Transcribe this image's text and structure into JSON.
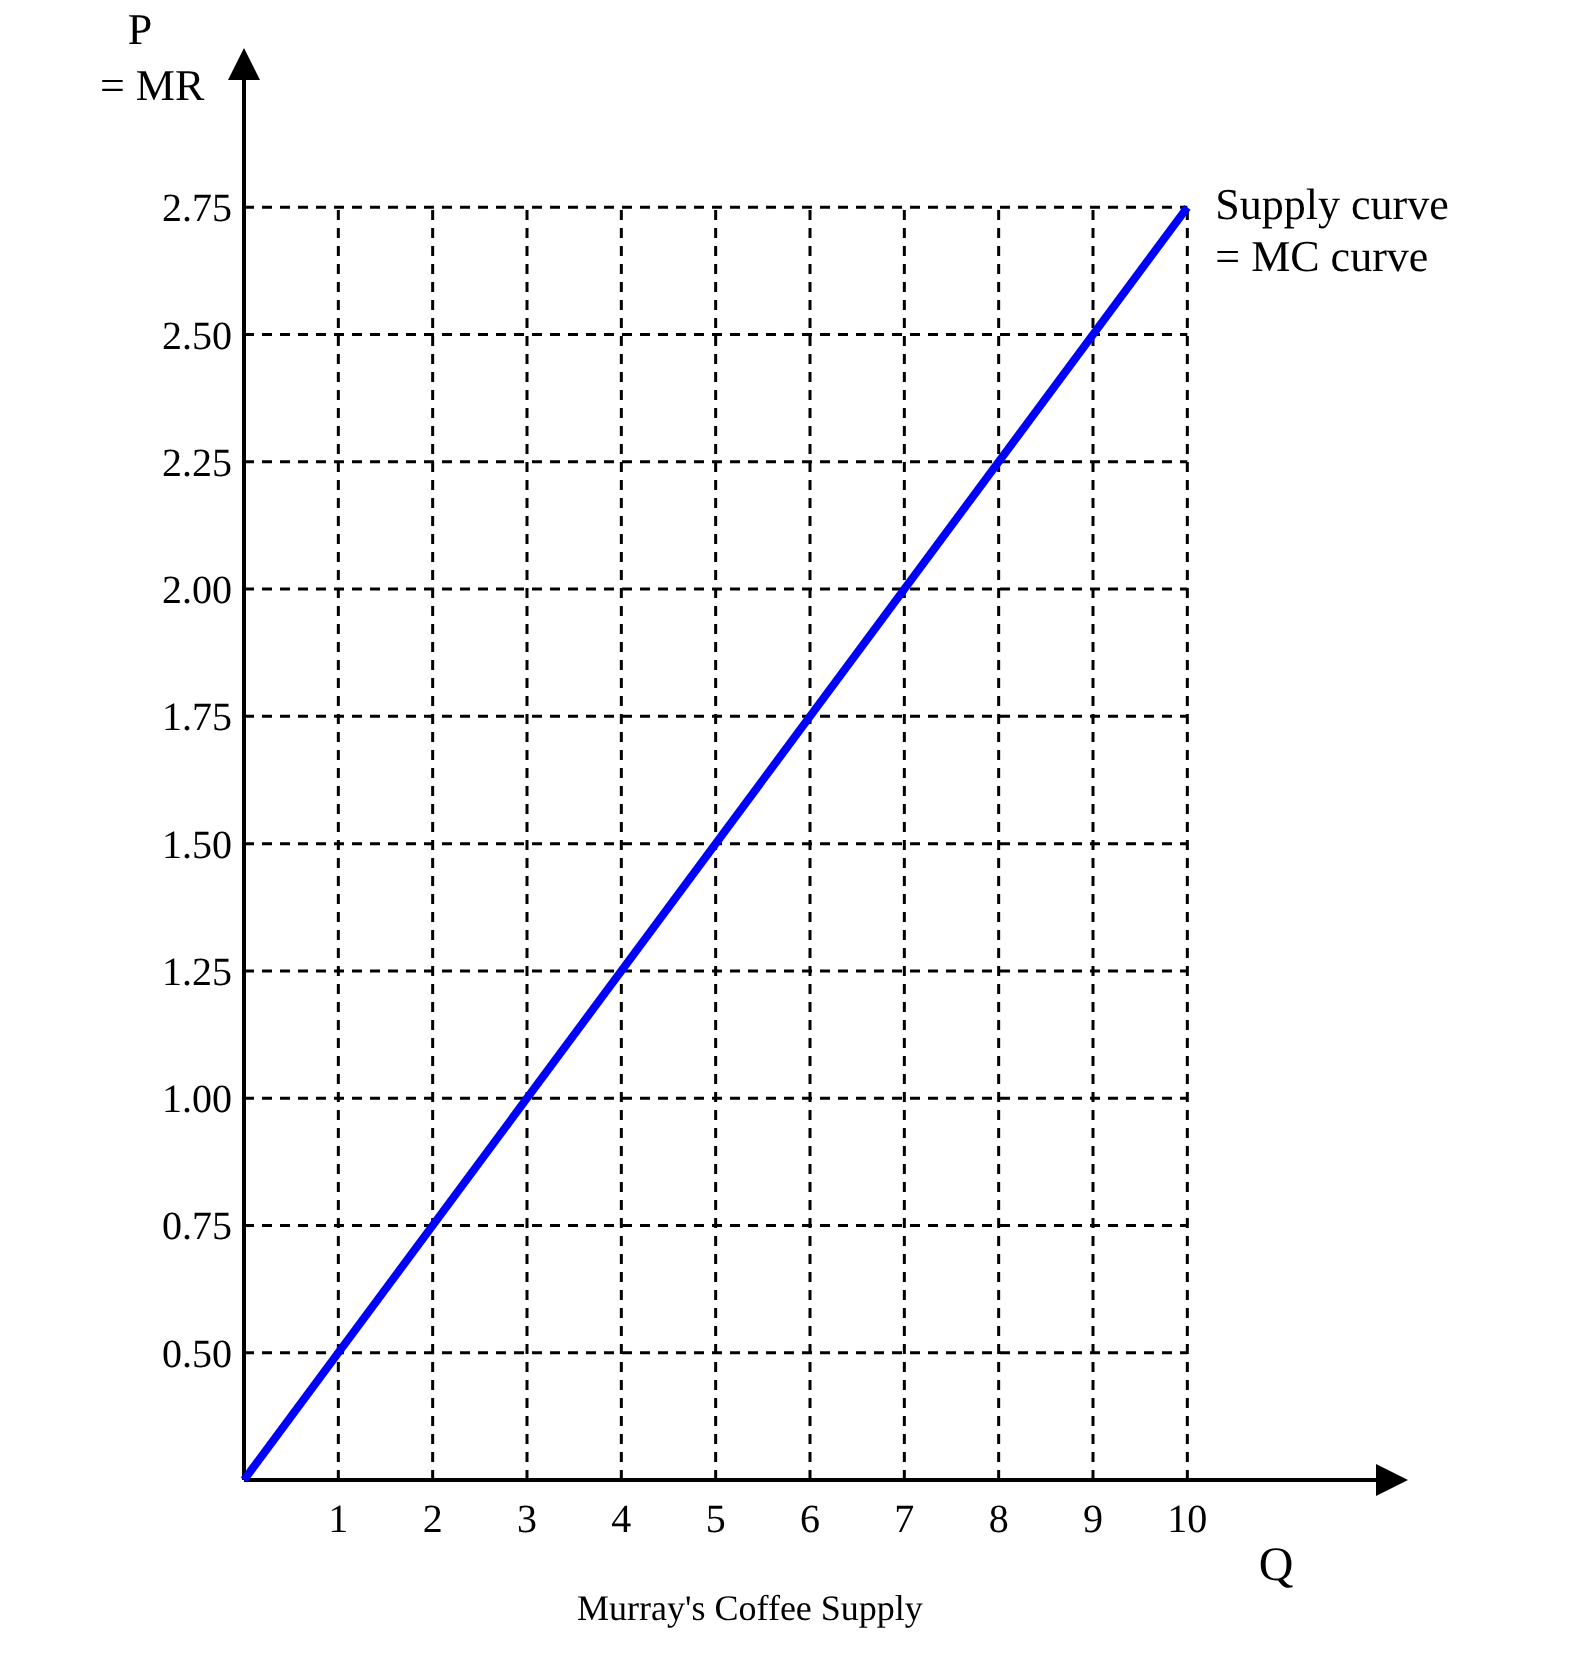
{
  "chart_data": {
    "type": "line",
    "title": "Murray's Coffee Supply",
    "xlabel": "Q",
    "ylabel": "P\n= MR",
    "x": [
      0,
      10
    ],
    "series": [
      {
        "name": "Supply curve\n= MC curve",
        "color": "#0000ff",
        "values": [
          0.25,
          2.75
        ]
      }
    ],
    "xlim": [
      0,
      12
    ],
    "ylim": [
      0.25,
      3
    ],
    "xticks": [
      1,
      2,
      3,
      4,
      5,
      6,
      7,
      8,
      9,
      10
    ],
    "yticks": [
      {
        "value": 0.5,
        "label": "0.50"
      },
      0.75,
      {
        "value": 1,
        "label": "1.00"
      },
      1.25,
      {
        "value": 1.5,
        "label": "1.50"
      },
      1.75,
      {
        "value": 2,
        "label": "2.00"
      },
      2.25,
      {
        "value": 2.5,
        "label": "2.50"
      },
      2.75
    ],
    "grid": true,
    "line_style": "solid",
    "marker": "none"
  }
}
